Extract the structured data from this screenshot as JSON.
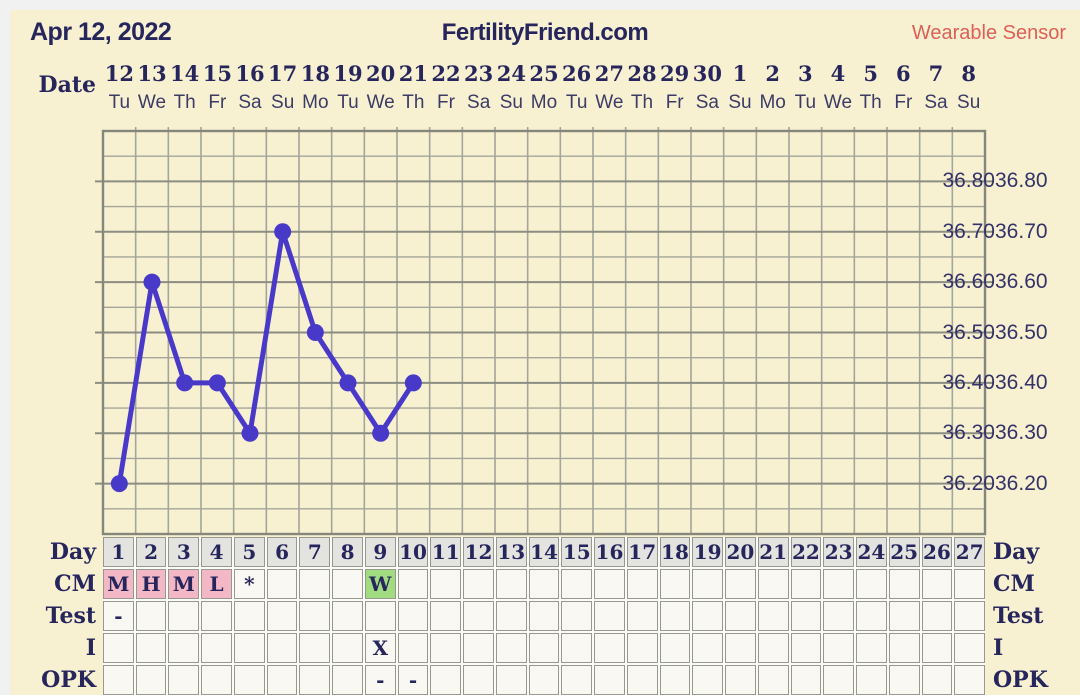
{
  "header": {
    "chart_date": "Apr 12, 2022",
    "site_title": "FertilityFriend.com",
    "sensor_label": "Wearable Sensor"
  },
  "calendar": {
    "row_label": "Date",
    "dates": [
      "12",
      "13",
      "14",
      "15",
      "16",
      "17",
      "18",
      "19",
      "20",
      "21",
      "22",
      "23",
      "24",
      "25",
      "26",
      "27",
      "28",
      "29",
      "30",
      "1",
      "2",
      "3",
      "4",
      "5",
      "6",
      "7",
      "8"
    ],
    "weekdays": [
      "Tu",
      "We",
      "Th",
      "Fr",
      "Sa",
      "Su",
      "Mo",
      "Tu",
      "We",
      "Th",
      "Fr",
      "Sa",
      "Su",
      "Mo",
      "Tu",
      "We",
      "Th",
      "Fr",
      "Sa",
      "Su",
      "Mo",
      "Tu",
      "We",
      "Th",
      "Fr",
      "Sa",
      "Su"
    ]
  },
  "chart_data": {
    "type": "line",
    "title": "",
    "x": [
      1,
      2,
      3,
      4,
      5,
      6,
      7,
      8,
      9,
      10
    ],
    "values": [
      36.2,
      36.6,
      36.4,
      36.4,
      36.3,
      36.7,
      36.5,
      36.4,
      36.3,
      36.4
    ],
    "columns": 27,
    "ylim": [
      36.1,
      36.9
    ],
    "minor_step": 0.05,
    "y_tick_labels": [
      "36.80",
      "36.70",
      "36.60",
      "36.50",
      "36.40",
      "36.30",
      "36.20"
    ],
    "grid": true,
    "legend": "none"
  },
  "table": {
    "day_row": {
      "label": "Day",
      "numbers": [
        "1",
        "2",
        "3",
        "4",
        "5",
        "6",
        "7",
        "8",
        "9",
        "10",
        "11",
        "12",
        "13",
        "14",
        "15",
        "16",
        "17",
        "18",
        "19",
        "20",
        "21",
        "22",
        "23",
        "24",
        "25",
        "26",
        "27"
      ]
    },
    "rows": [
      {
        "label": "CM",
        "entries": [
          {
            "day": 1,
            "text": "M",
            "bg": "#f3b7c6"
          },
          {
            "day": 2,
            "text": "H",
            "bg": "#f3b7c6"
          },
          {
            "day": 3,
            "text": "M",
            "bg": "#f3b7c6"
          },
          {
            "day": 4,
            "text": "L",
            "bg": "#f3b7c6"
          },
          {
            "day": 5,
            "text": "*"
          },
          {
            "day": 9,
            "text": "W",
            "bg": "#a2dc80"
          }
        ]
      },
      {
        "label": "Test",
        "entries": [
          {
            "day": 1,
            "text": "-"
          }
        ]
      },
      {
        "label": "I",
        "entries": [
          {
            "day": 9,
            "text": "X"
          }
        ]
      },
      {
        "label": "OPK",
        "entries": [
          {
            "day": 9,
            "text": "-"
          },
          {
            "day": 10,
            "text": "-"
          }
        ]
      }
    ]
  },
  "colors": {
    "page_bg": "#f1f1f2",
    "sheet_bg": "#f7f1d2",
    "navy_text": "#26255c",
    "sensor_salmon": "#dd6055",
    "line_color": "#4839c9",
    "grid_minor": "#a3a49a",
    "grid_major": "#8b8c82",
    "grid_border": "#85867c",
    "day_cell_bg": "#e3e3e0",
    "cell_bg": "#f9f8f2",
    "cm_pink": "#f3b7c6",
    "cm_green": "#a2dc80"
  }
}
